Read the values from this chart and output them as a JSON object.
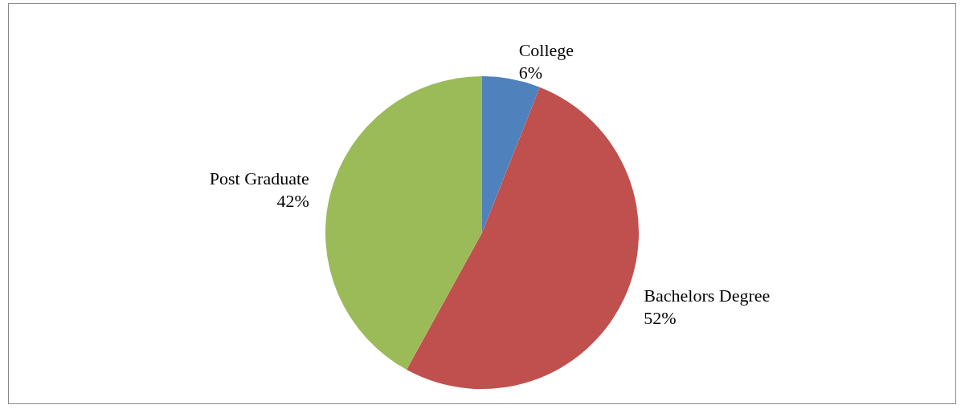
{
  "chart_data": {
    "type": "pie",
    "categories": [
      "College",
      "Bachelors Degree",
      "Post Graduate"
    ],
    "values": [
      6,
      52,
      42
    ],
    "value_labels": [
      "6%",
      "52%",
      "42%"
    ],
    "colors": [
      "#4f81bd",
      "#c0504d",
      "#9bbb59"
    ],
    "legend": false
  }
}
